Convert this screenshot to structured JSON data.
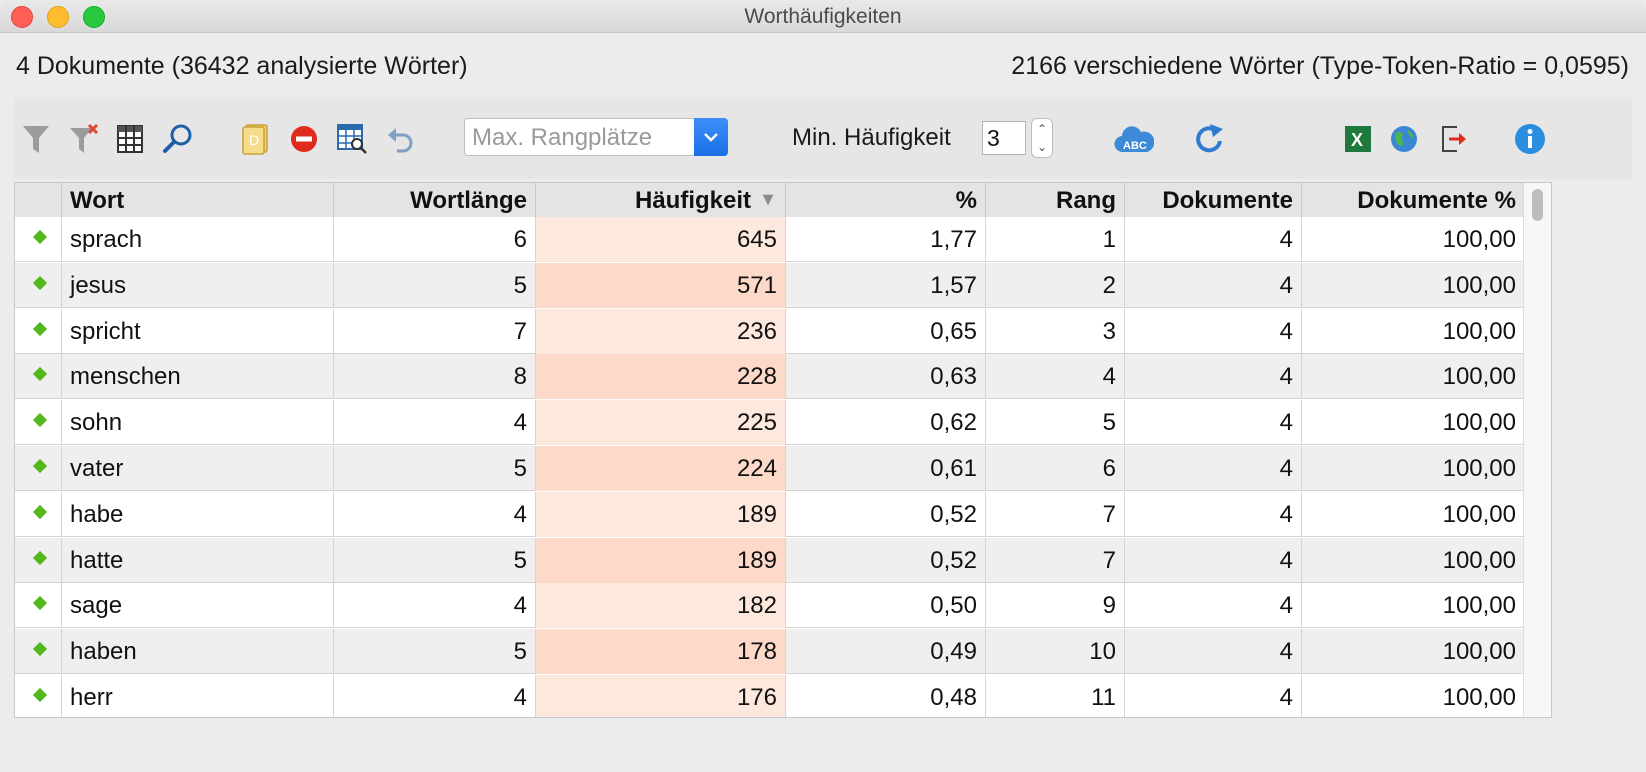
{
  "window": {
    "title": "Worthäufigkeiten"
  },
  "info": {
    "left": "4 Dokumente (36432 analysierte Wörter)",
    "right": "2166 verschiedene Wörter (Type-Token-Ratio = 0,0595)"
  },
  "toolbar": {
    "rank_placeholder": "Max. Rangplätze",
    "min_label": "Min. Häufigkeit",
    "min_value": "3",
    "icons": [
      "filter-icon",
      "clear-filter-icon",
      "columns-icon",
      "search-icon",
      "document-icon",
      "remove-icon",
      "table-search-icon",
      "undo-icon",
      "dropdown-chevron-icon",
      "stepper-icon",
      "word-cloud-icon",
      "refresh-icon",
      "excel-export-icon",
      "web-export-icon",
      "export-icon",
      "info-icon"
    ],
    "colors": {
      "accent_blue": "#1a6fe6",
      "excel_green": "#1e7a3c",
      "remove_red": "#e02a1c",
      "info_blue": "#2a8ee0",
      "diamond_green": "#52b81d",
      "sort_highlight": "#fcd9c8"
    }
  },
  "table": {
    "columns": [
      "Wort",
      "Wortlänge",
      "Häufigkeit",
      "%",
      "Rang",
      "Dokumente",
      "Dokumente %"
    ],
    "sort_indicator": "▼",
    "rows": [
      [
        "sprach",
        "6",
        "645",
        "1,77",
        "1",
        "4",
        "100,00"
      ],
      [
        "jesus",
        "5",
        "571",
        "1,57",
        "2",
        "4",
        "100,00"
      ],
      [
        "spricht",
        "7",
        "236",
        "0,65",
        "3",
        "4",
        "100,00"
      ],
      [
        "menschen",
        "8",
        "228",
        "0,63",
        "4",
        "4",
        "100,00"
      ],
      [
        "sohn",
        "4",
        "225",
        "0,62",
        "5",
        "4",
        "100,00"
      ],
      [
        "vater",
        "5",
        "224",
        "0,61",
        "6",
        "4",
        "100,00"
      ],
      [
        "habe",
        "4",
        "189",
        "0,52",
        "7",
        "4",
        "100,00"
      ],
      [
        "hatte",
        "5",
        "189",
        "0,52",
        "7",
        "4",
        "100,00"
      ],
      [
        "sage",
        "4",
        "182",
        "0,50",
        "9",
        "4",
        "100,00"
      ],
      [
        "haben",
        "5",
        "178",
        "0,49",
        "10",
        "4",
        "100,00"
      ],
      [
        "herr",
        "4",
        "176",
        "0,48",
        "11",
        "4",
        "100,00"
      ]
    ]
  }
}
